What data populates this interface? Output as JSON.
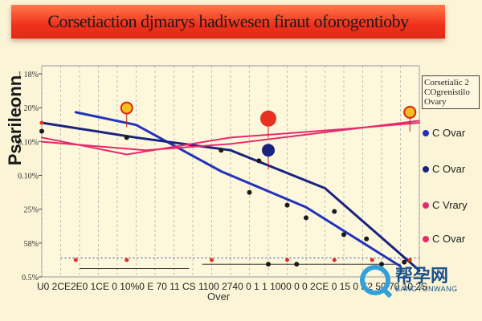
{
  "chart_data": {
    "type": "line",
    "title": "Corsetiaction djmarys hadiwesen firaut oforogentioby",
    "ylabel": "Psarileonn",
    "xlabel": "Over",
    "yticks": [
      "1 18%",
      "1 20%",
      "0.10%",
      "0.10%",
      "25%",
      "58%",
      "0.5%"
    ],
    "xticks": [
      "U0",
      "2CE",
      "0",
      "2E",
      "0 1",
      "2C",
      "0 10%",
      "0",
      "E",
      "C 0",
      "1",
      "C10",
      "0 7",
      "40",
      "C 1",
      "CS",
      "1100",
      "2 E",
      "740",
      "C",
      "0",
      "10",
      "0",
      "0",
      "2CE",
      "",
      "0 15",
      "0",
      "IC",
      "7",
      "2",
      "1",
      "0",
      "E",
      "2 50",
      "7C",
      "",
      "10 2S"
    ],
    "xtick_text": "U0 2CE2E0 1CE 0 10%0 E 70 11 CS 1100 2740 0 1 1 1000 0 0 2CE 0 15 0 E2 50 70 10 2S",
    "legend_title": "Corsetialic 2 COgrenistilo Ovary",
    "series": [
      {
        "name": "C Ovar",
        "color": "#2233bb",
        "points": [
          [
            0.18,
            0.78
          ],
          [
            0.5,
            0.72
          ],
          [
            0.95,
            0.5
          ],
          [
            1.4,
            0.33
          ],
          [
            1.9,
            0.05
          ]
        ]
      },
      {
        "name": "C Ovar",
        "color": "#1a237e",
        "points": [
          [
            0.0,
            0.73
          ],
          [
            0.5,
            0.66
          ],
          [
            1.0,
            0.6
          ],
          [
            1.5,
            0.42
          ],
          [
            2.0,
            0.03
          ]
        ]
      },
      {
        "name": "C Vrary",
        "color": "#e8286a",
        "points": [
          [
            0.0,
            0.64
          ],
          [
            0.55,
            0.6
          ],
          [
            1.0,
            0.63
          ],
          [
            2.0,
            0.74
          ]
        ]
      },
      {
        "name": "C Ovar",
        "color": "#e8286a",
        "points": [
          [
            0.0,
            0.66
          ],
          [
            0.45,
            0.58
          ],
          [
            1.0,
            0.66
          ],
          [
            1.6,
            0.7
          ],
          [
            2.0,
            0.73
          ]
        ]
      }
    ],
    "scatter": [
      {
        "color": "#1a1a1a",
        "points": [
          [
            0.0,
            0.69
          ],
          [
            0.45,
            0.66
          ],
          [
            0.95,
            0.6
          ],
          [
            1.15,
            0.55
          ],
          [
            1.1,
            0.4
          ],
          [
            1.3,
            0.34
          ],
          [
            1.4,
            0.28
          ],
          [
            1.55,
            0.31
          ],
          [
            1.6,
            0.2
          ],
          [
            1.72,
            0.18
          ],
          [
            1.8,
            0.06
          ],
          [
            1.2,
            0.06
          ],
          [
            1.35,
            0.06
          ],
          [
            1.92,
            0.07
          ]
        ]
      },
      {
        "color": "#e03020",
        "points": [
          [
            0.0,
            0.73
          ],
          [
            0.18,
            0.08
          ],
          [
            0.45,
            0.08
          ],
          [
            0.9,
            0.08
          ],
          [
            1.3,
            0.08
          ],
          [
            1.55,
            0.08
          ],
          [
            1.75,
            0.08
          ],
          [
            1.95,
            0.08
          ]
        ]
      }
    ],
    "highlights": [
      {
        "x": 0.45,
        "y": 0.8,
        "color": "#f0c020",
        "ring": "#e02010"
      },
      {
        "x": 1.2,
        "y": 0.75,
        "color": "#e83020",
        "ring": "#e83020"
      },
      {
        "x": 1.95,
        "y": 0.78,
        "color": "#f0c020",
        "ring": "#e02010"
      },
      {
        "x": 1.2,
        "y": 0.6,
        "color": "#1a237e",
        "ring": "#1a237e"
      }
    ],
    "xlim": [
      0,
      2
    ],
    "ylim": [
      0,
      1
    ],
    "grid": "vertical-dashed",
    "legend_position": "right"
  },
  "watermark": {
    "main": "帮孕网",
    "sub": "BANGYUNWANG"
  }
}
